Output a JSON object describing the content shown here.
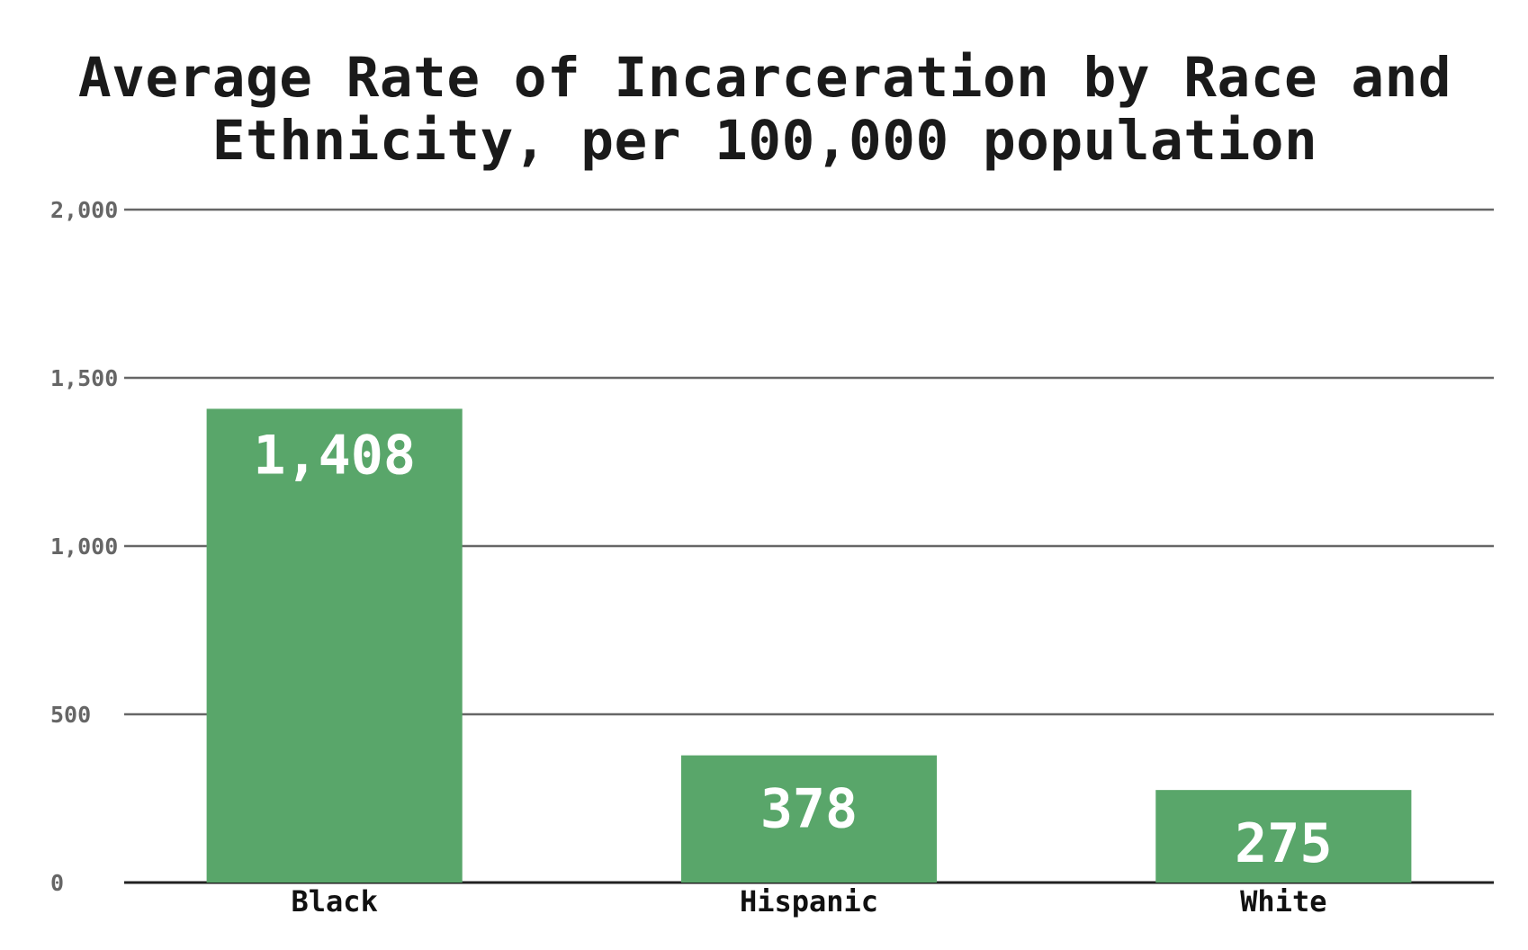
{
  "chart_data": {
    "type": "bar",
    "title": "Average Rate of Incarceration by Race and Ethnicity, per 100,000 population",
    "xlabel": "",
    "ylabel": "",
    "categories": [
      "Black",
      "Hispanic",
      "White"
    ],
    "values": [
      1408,
      378,
      275
    ],
    "value_labels": [
      "1,408",
      "378",
      "275"
    ],
    "ylim": [
      0,
      2000
    ],
    "yticks": [
      0,
      500,
      1000,
      1500,
      2000
    ],
    "ytick_labels": [
      "0",
      "500",
      "1,000",
      "1,500",
      "2,000"
    ],
    "grid": true,
    "legend": "none",
    "colors": {
      "bar": "#59a66a",
      "grid": "#666666",
      "baseline": "#222222",
      "value_label": "#ffffff"
    }
  }
}
